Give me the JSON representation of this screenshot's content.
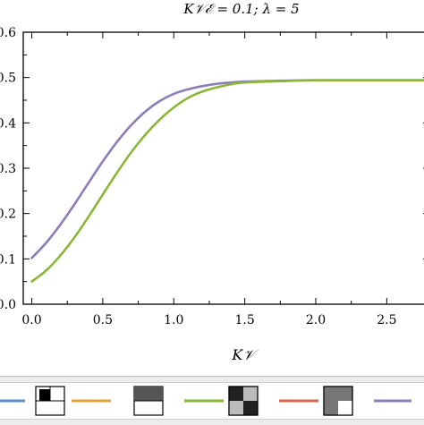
{
  "chart_data": {
    "type": "line",
    "title": "K𝒱ℰ = 0.1; λ = 5",
    "xlabel": "K𝒱",
    "ylabel": "",
    "xlim": [
      -0.06,
      2.8
    ],
    "ylim": [
      0.0,
      0.6
    ],
    "xticks": [
      0.0,
      0.5,
      1.0,
      1.5,
      2.0,
      2.5
    ],
    "xtick_labels": [
      "0.0",
      "0.5",
      "1.0",
      "1.5",
      "2.0",
      "2.5"
    ],
    "yticks": [
      0.0,
      0.1,
      0.2,
      0.3,
      0.4,
      0.5,
      0.6
    ],
    "ytick_labels": [
      "0.0",
      "0.1",
      "0.2",
      "0.3",
      "0.4",
      "0.5",
      "0.6"
    ],
    "grid": false,
    "series": [
      {
        "color": "#8c7cb8",
        "x": [
          0.0,
          0.1,
          0.2,
          0.3,
          0.4,
          0.5,
          0.6,
          0.7,
          0.8,
          0.9,
          1.0,
          1.1,
          1.2,
          1.3,
          1.4,
          1.5,
          1.75,
          2.0,
          2.5,
          2.8
        ],
        "y": [
          0.102,
          0.135,
          0.175,
          0.22,
          0.268,
          0.315,
          0.358,
          0.395,
          0.425,
          0.448,
          0.464,
          0.474,
          0.481,
          0.486,
          0.489,
          0.491,
          0.493,
          0.494,
          0.494,
          0.494
        ]
      },
      {
        "color": "#8ab63a",
        "x": [
          0.0,
          0.1,
          0.2,
          0.3,
          0.4,
          0.5,
          0.6,
          0.7,
          0.8,
          0.9,
          1.0,
          1.1,
          1.2,
          1.3,
          1.4,
          1.5,
          1.75,
          2.0,
          2.5,
          2.8
        ],
        "y": [
          0.05,
          0.074,
          0.107,
          0.147,
          0.193,
          0.242,
          0.29,
          0.335,
          0.374,
          0.407,
          0.434,
          0.455,
          0.469,
          0.478,
          0.485,
          0.489,
          0.492,
          0.494,
          0.494,
          0.494
        ]
      }
    ]
  },
  "legend": {
    "items": [
      {
        "line_color": "#5b8ec8",
        "swatch": "quad-top-left-black"
      },
      {
        "line_color": "#e3a53a",
        "swatch": "top-half-dark-gray"
      },
      {
        "line_color": "#8ab63a",
        "swatch": "checker-black-gray"
      },
      {
        "line_color": "#d9694a",
        "swatch": "three-quarter-gray"
      },
      {
        "line_color": "#8c7cb8",
        "swatch": ""
      }
    ]
  }
}
